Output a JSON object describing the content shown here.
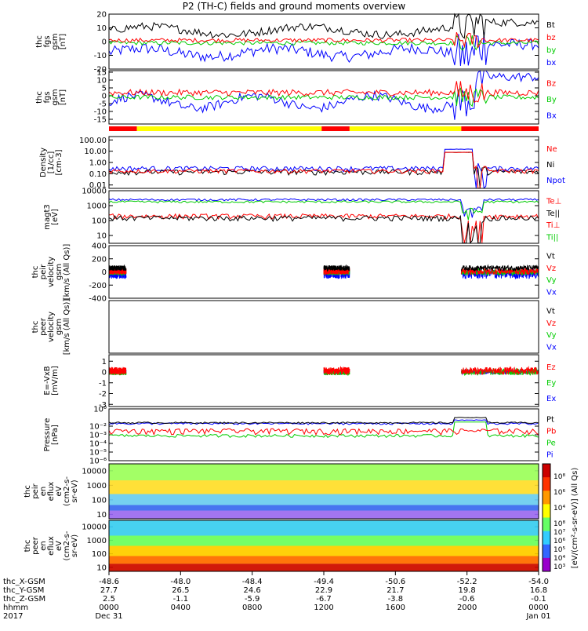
{
  "title": "P2 (TH-C) fields and ground moments overview",
  "chart_data": [
    {
      "type": "line",
      "ylabel_lines": [
        "thc",
        "fgs",
        "gsm",
        "[nT]"
      ],
      "ylim": [
        -20,
        20
      ],
      "yticks": [
        "20",
        "10",
        "0",
        "-10",
        "-20"
      ],
      "ytick_values": [
        20,
        10,
        0,
        -10,
        -20
      ],
      "legend": [
        {
          "label": "Bt",
          "color": "#000000"
        },
        {
          "label": "bz",
          "color": "#ff0000"
        },
        {
          "label": "by",
          "color": "#00cc00"
        },
        {
          "label": "bx",
          "color": "#0000ff"
        }
      ]
    },
    {
      "type": "line",
      "ylabel_lines": [
        "thc",
        "fgs",
        "gsm",
        "[nT]"
      ],
      "ylim": [
        -18,
        16
      ],
      "yticks": [
        "15",
        "10",
        "5",
        "0",
        "-5",
        "-10",
        "-15"
      ],
      "ytick_values": [
        15,
        10,
        5,
        0,
        -5,
        -10,
        -15
      ],
      "legend": [
        {
          "label": "Bz",
          "color": "#ff0000"
        },
        {
          "label": "By",
          "color": "#00cc00"
        },
        {
          "label": "Bx",
          "color": "#0000ff"
        }
      ]
    },
    {
      "type": "mode_bar",
      "segments": [
        {
          "start": 0.0,
          "end": 0.065,
          "color": "#ff0000"
        },
        {
          "start": 0.065,
          "end": 0.495,
          "color": "#ffff00"
        },
        {
          "start": 0.495,
          "end": 0.56,
          "color": "#ff0000"
        },
        {
          "start": 0.56,
          "end": 0.82,
          "color": "#ffff00"
        },
        {
          "start": 0.82,
          "end": 1.0,
          "color": "#ff0000"
        }
      ]
    },
    {
      "type": "line",
      "scale": "log",
      "ylabel_lines": [
        "Density",
        "[1/cc]",
        "[cm-3]"
      ],
      "ylim": [
        0.005,
        200
      ],
      "yticks": [
        "100.00",
        "10.00",
        "1.00",
        "0.10",
        "0.01"
      ],
      "ytick_values": [
        100,
        10,
        1,
        0.1,
        0.01
      ],
      "legend": [
        {
          "label": "Ne",
          "color": "#ff0000"
        },
        {
          "label": "Ni",
          "color": "#000000"
        },
        {
          "label": "Npot",
          "color": "#0000ff"
        }
      ]
    },
    {
      "type": "line",
      "scale": "log",
      "ylabel_lines": [
        "magt3",
        "[eV]"
      ],
      "ylim": [
        3,
        10000
      ],
      "yticks": [
        "10000",
        "1000",
        "100",
        "10"
      ],
      "ytick_values": [
        10000,
        1000,
        100,
        10
      ],
      "legend": [
        {
          "label": "Te⊥",
          "color": "#ff0000"
        },
        {
          "label": "Te||",
          "color": "#000000"
        },
        {
          "label": "Ti⊥",
          "color": "#ff0000"
        },
        {
          "label": "Ti||",
          "color": "#00cc00"
        }
      ]
    },
    {
      "type": "line",
      "ylabel_lines": [
        "thc",
        "peir",
        "velocity",
        "gsm",
        "[km/s (All Qs)]"
      ],
      "ylim": [
        -400,
        400
      ],
      "yticks": [
        "400",
        "200",
        "0",
        "-200",
        "-400"
      ],
      "ytick_values": [
        400,
        200,
        0,
        -200,
        -400
      ],
      "legend": [
        {
          "label": "Vt",
          "color": "#000000"
        },
        {
          "label": "Vz",
          "color": "#ff0000"
        },
        {
          "label": "Vy",
          "color": "#00cc00"
        },
        {
          "label": "Vx",
          "color": "#0000ff"
        }
      ]
    },
    {
      "type": "line",
      "ylabel_lines": [
        "thc",
        "peer",
        "velocity",
        "gsm",
        "[km/s (All Qs)]"
      ],
      "ylim": [
        -1,
        1
      ],
      "yticks": [],
      "ytick_values": [],
      "legend": [
        {
          "label": "Vt",
          "color": "#000000"
        },
        {
          "label": "Vz",
          "color": "#ff0000"
        },
        {
          "label": "Vy",
          "color": "#00cc00"
        },
        {
          "label": "Vx",
          "color": "#0000ff"
        }
      ]
    },
    {
      "type": "line",
      "ylabel_lines": [
        "E=-VxB",
        "[mV/m]"
      ],
      "ylim": [
        -3.2,
        1.6
      ],
      "yticks": [
        "1",
        "0",
        "-1",
        "-2",
        "-3"
      ],
      "ytick_values": [
        1,
        0,
        -1,
        -2,
        -3
      ],
      "legend": [
        {
          "label": "Ez",
          "color": "#ff0000"
        },
        {
          "label": "Ey",
          "color": "#00cc00"
        },
        {
          "label": "Ex",
          "color": "#0000ff"
        }
      ]
    },
    {
      "type": "line",
      "scale": "log",
      "ylabel_lines": [
        "Pressure",
        "[nPa]"
      ],
      "ylim": [
        1e-06,
        1
      ],
      "yticks": [
        "10⁰",
        "10⁻²",
        "10⁻³",
        "10⁻⁴",
        "10⁻⁵",
        "10⁻⁶"
      ],
      "ytick_values": [
        1,
        0.01,
        0.001,
        0.0001,
        1e-05,
        1e-06
      ],
      "legend": [
        {
          "label": "Pt",
          "color": "#000000"
        },
        {
          "label": "Pb",
          "color": "#ff0000"
        },
        {
          "label": "Pe",
          "color": "#00cc00"
        },
        {
          "label": "Pi",
          "color": "#0000ff"
        }
      ]
    },
    {
      "type": "heatmap",
      "scale": "log",
      "ylabel_lines": [
        "thc",
        "peir",
        "en",
        "eflux",
        "eV",
        "(cm2-s-",
        "sr-eV)"
      ],
      "ylim": [
        5,
        30000
      ],
      "yticks": [
        "10000",
        "1000",
        "100",
        "10"
      ],
      "ytick_values": [
        10000,
        1000,
        100,
        10
      ]
    },
    {
      "type": "heatmap",
      "scale": "log",
      "ylabel_lines": [
        "thc",
        "peer",
        "en",
        "eflux",
        "eV",
        "(cm2-s-",
        "sr-eV)"
      ],
      "ylim": [
        5,
        30000
      ],
      "yticks": [
        "10000",
        "1000",
        "100",
        "10"
      ],
      "ytick_values": [
        10000,
        1000,
        100,
        10
      ]
    }
  ],
  "colorbar": {
    "label": "[eV/(cm²-s-sr-eV)] (All Qs)",
    "upper_ticks": [
      "10⁸",
      "10⁶",
      "10⁴"
    ],
    "lower_ticks": [
      "10⁸",
      "10⁷",
      "10⁶",
      "10⁵",
      "10⁴",
      "10³"
    ]
  },
  "x_axis": {
    "row_labels": [
      "thc_X-GSM",
      "thc_Y-GSM",
      "thc_Z-GSM",
      "hhmm",
      "2017"
    ],
    "columns": [
      [
        "-48.6",
        "27.7",
        "2.5",
        "0000",
        "Dec 31"
      ],
      [
        "-48.0",
        "26.5",
        "-1.1",
        "0400",
        ""
      ],
      [
        "-48.4",
        "24.6",
        "-5.9",
        "0800",
        ""
      ],
      [
        "-49.4",
        "22.9",
        "-6.7",
        "1200",
        ""
      ],
      [
        "-50.6",
        "21.7",
        "-3.8",
        "1600",
        ""
      ],
      [
        "-52.2",
        "19.8",
        "-0.6",
        "2000",
        ""
      ],
      [
        "-54.0",
        "16.8",
        "-0.1",
        "0000",
        "Jan 01"
      ]
    ]
  }
}
